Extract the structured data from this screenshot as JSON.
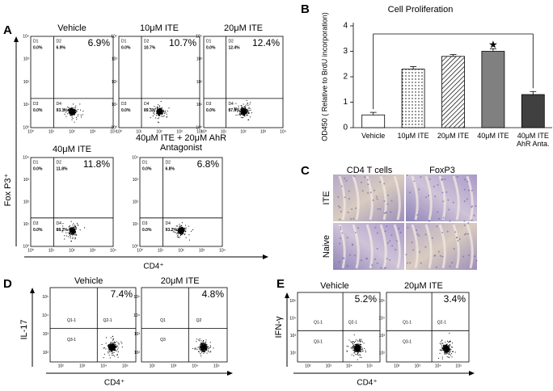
{
  "panel_labels": [
    "A",
    "B",
    "C",
    "D",
    "E"
  ],
  "panel_a": {
    "y_label": "Fox P3⁺",
    "x_label": "CD4⁺",
    "axis_ticks": [
      "10⁰",
      "10¹",
      "10²",
      "10³",
      "10⁴"
    ],
    "plots": [
      {
        "title": "Vehicle",
        "percent": "6.9%",
        "quadrants": [
          "D1",
          "D2",
          "D3",
          "D4"
        ],
        "quad_values": [
          "0.0%",
          "6.9%",
          "0.0%",
          "93.1%"
        ]
      },
      {
        "title": "10μM ITE",
        "percent": "10.7%",
        "quadrants": [
          "D1",
          "D2",
          "D3",
          "D4"
        ],
        "quad_values": [
          "0.0%",
          "10.7%",
          "0.0%",
          "89.3%"
        ]
      },
      {
        "title": "20μM ITE",
        "percent": "12.4%",
        "quadrants": [
          "D1",
          "D2",
          "D3",
          "D4"
        ],
        "quad_values": [
          "0.0%",
          "12.4%",
          "0.0%",
          "87.6%"
        ]
      },
      {
        "title": "40μM ITE",
        "percent": "11.8%",
        "quadrants": [
          "D1",
          "D2",
          "D3",
          "D4"
        ],
        "quad_values": [
          "0.0%",
          "11.8%",
          "0.0%",
          "88.2%"
        ]
      },
      {
        "title": "40μM ITE + 20μM AhR Antagonist",
        "percent": "6.8%",
        "quadrants": [
          "D1",
          "D2",
          "D3",
          "D4"
        ],
        "quad_values": [
          "0.0%",
          "6.8%",
          "0.0%",
          "93.2%"
        ]
      }
    ]
  },
  "chart_data": {
    "type": "bar",
    "title": "Cell Proliferation",
    "y_label": "OD450 ( Relative to BrdU incorporation)",
    "categories": [
      "Vehicle",
      "10μM ITE",
      "20μM ITE",
      "40μM ITE",
      "40μM ITE AhR Anta."
    ],
    "values": [
      0.5,
      2.3,
      2.8,
      3.0,
      1.3
    ],
    "errors": [
      0.1,
      0.1,
      0.07,
      0.1,
      0.12
    ],
    "fills": [
      "#ffffff",
      "dots",
      "hatch",
      "#808080",
      "#404040"
    ],
    "ylim": [
      0,
      4
    ],
    "yticks": [
      0,
      1,
      2,
      3,
      4
    ],
    "annotation": "★"
  },
  "panel_c": {
    "columns": [
      "CD4 T cells",
      "FoxP3"
    ],
    "rows": [
      "ITE",
      "Naive"
    ]
  },
  "panel_d": {
    "y_label": "IL-17",
    "x_label": "CD4⁺",
    "axis_ticks": [
      "10²",
      "10³",
      "10⁴",
      "10⁵"
    ],
    "plots": [
      {
        "title": "Vehicle",
        "percent": "7.4%",
        "quadrants": [
          "Q1-1",
          "Q2-1",
          "Q3-1"
        ]
      },
      {
        "title": "20μM ITE",
        "percent": "4.8%",
        "quadrants": [
          "Q1",
          "Q2",
          "Q3"
        ]
      }
    ]
  },
  "panel_e": {
    "y_label": "IFN-γ",
    "x_label": "CD4⁺",
    "axis_ticks": [
      "10²",
      "10³",
      "10⁴",
      "10⁵"
    ],
    "plots": [
      {
        "title": "Vehicle",
        "percent": "5.2%",
        "quadrants": [
          "Q1-1",
          "Q2-1",
          "Q3-1"
        ]
      },
      {
        "title": "20μM ITE",
        "percent": "3.4%",
        "quadrants": [
          "Q1-1",
          "Q2-1",
          "Q3-1"
        ]
      }
    ]
  }
}
